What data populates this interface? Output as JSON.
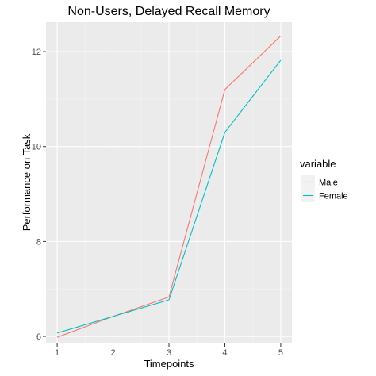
{
  "chart_data": {
    "type": "line",
    "title": "Non-Users, Delayed Recall Memory",
    "xlabel": "Timepoints",
    "ylabel": "Performance on Task",
    "x": [
      1,
      2,
      3,
      4,
      5
    ],
    "x_ticks": [
      "1",
      "2",
      "3",
      "4",
      "5"
    ],
    "y_ticks": [
      "6",
      "8",
      "10",
      "12"
    ],
    "xlim": [
      0.8,
      5.2
    ],
    "ylim": [
      5.85,
      12.62
    ],
    "grid": true,
    "legend": {
      "title": "variable",
      "placement": "right"
    },
    "series": [
      {
        "name": "Male",
        "color": "#f8766d",
        "values": [
          5.98,
          6.42,
          6.83,
          11.2,
          12.33
        ]
      },
      {
        "name": "Female",
        "color": "#00bfc4",
        "values": [
          6.07,
          6.42,
          6.77,
          10.3,
          11.82
        ]
      }
    ]
  }
}
